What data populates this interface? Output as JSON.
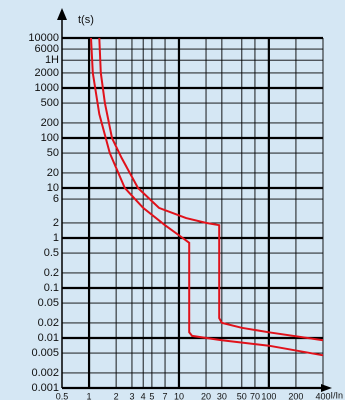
{
  "chart_data": {
    "type": "line",
    "y_label": "t(s)",
    "x_label": "I/In",
    "log_x": true,
    "log_y": true,
    "grid": true,
    "xlim": [
      0.5,
      400
    ],
    "ylim": [
      0.001,
      10000
    ],
    "xticks": [
      0.5,
      1,
      2,
      3,
      4,
      5,
      7,
      10,
      20,
      30,
      50,
      70,
      100,
      200,
      400
    ],
    "yticks": [
      10000,
      6000,
      {
        "value": 3600,
        "label": "1H"
      },
      2000,
      1000,
      500,
      200,
      100,
      50,
      20,
      10,
      6,
      2,
      1,
      0.5,
      0.2,
      0.1,
      0.05,
      0.02,
      0.01,
      0.005,
      0.002,
      0.001
    ],
    "series": [
      {
        "color": "#e0121b",
        "x": [
          1.3,
          1.35,
          1.5,
          1.8,
          2.3,
          3.5,
          6,
          12,
          20,
          28,
          28,
          30,
          50,
          100,
          400
        ],
        "values": [
          10000,
          2000,
          500,
          100,
          40,
          10,
          4,
          2.5,
          2,
          1.8,
          0.025,
          0.02,
          0.016,
          0.013,
          0.009
        ]
      },
      {
        "color": "#e0121b",
        "x": [
          1.05,
          1.1,
          1.3,
          1.7,
          2.5,
          4,
          7,
          11,
          13,
          13,
          14,
          30,
          100,
          400
        ],
        "values": [
          10000,
          2000,
          300,
          50,
          10,
          4,
          1.8,
          1,
          0.8,
          0.013,
          0.011,
          0.009,
          0.007,
          0.0045
        ]
      }
    ]
  }
}
